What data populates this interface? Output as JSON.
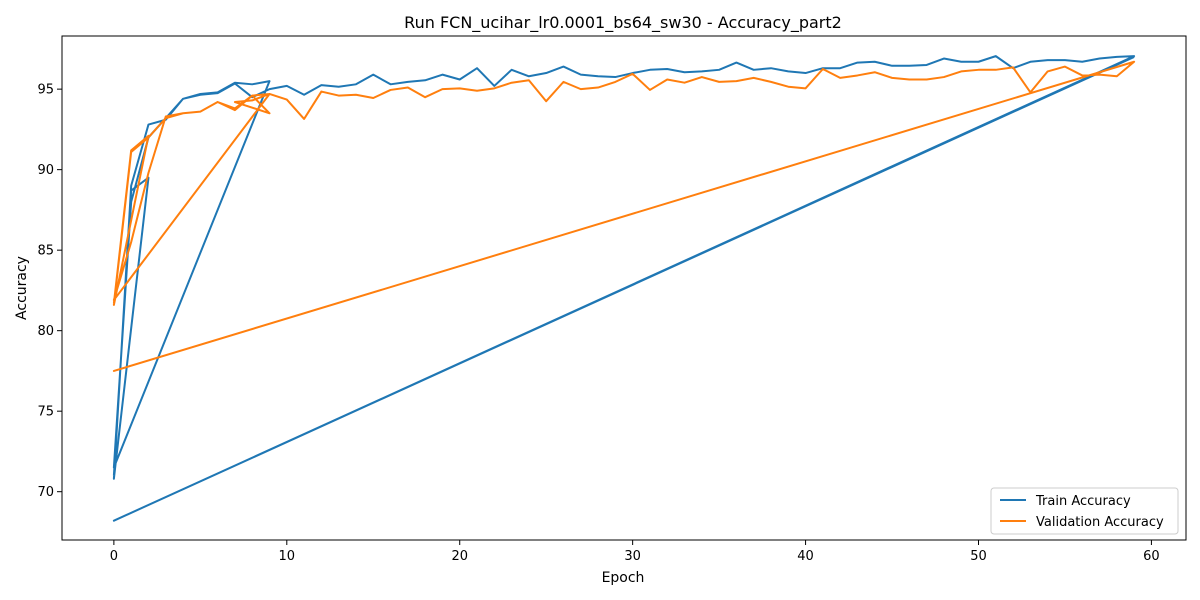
{
  "chart_data": {
    "type": "line",
    "title": "Run FCN_ucihar_lr0.0001_bs64_sw30 - Accuracy_part2",
    "xlabel": "Epoch",
    "ylabel": "Accuracy",
    "xlim": [
      -3,
      62
    ],
    "ylim": [
      67,
      98.3
    ],
    "xticks": [
      0,
      10,
      20,
      30,
      40,
      50,
      60
    ],
    "yticks": [
      70,
      75,
      80,
      85,
      90,
      95
    ],
    "legend_position": "bottom-right",
    "series": [
      {
        "name": "Train Accuracy",
        "color": "#1f77b4",
        "x": [
          0,
          1,
          2,
          0,
          1,
          2,
          3,
          4,
          5,
          6,
          7,
          8,
          9,
          0,
          1,
          2,
          3,
          4,
          5,
          6,
          7,
          8,
          9,
          10,
          11,
          12,
          13,
          14,
          15,
          16,
          17,
          18,
          19,
          20,
          21,
          22,
          23,
          24,
          25,
          26,
          27,
          28,
          29,
          30,
          31,
          32,
          33,
          34,
          35,
          36,
          37,
          38,
          39,
          40,
          41,
          42,
          43,
          44,
          45,
          46,
          47,
          48,
          49,
          50,
          51,
          52,
          53,
          54,
          55,
          56,
          57,
          58,
          59,
          0,
          59
        ],
        "y": [
          71.0,
          88.7,
          89.5,
          70.8,
          89.0,
          92.8,
          93.1,
          94.4,
          94.7,
          94.8,
          95.4,
          95.3,
          95.5,
          71.5,
          88.0,
          92.0,
          93.2,
          94.4,
          94.65,
          94.75,
          95.35,
          94.5,
          95.0,
          95.2,
          94.65,
          95.25,
          95.15,
          95.3,
          95.9,
          95.3,
          95.45,
          95.55,
          95.9,
          95.6,
          96.3,
          95.2,
          96.2,
          95.8,
          96.0,
          96.4,
          95.9,
          95.8,
          95.75,
          96.0,
          96.2,
          96.25,
          96.05,
          96.1,
          96.2,
          96.65,
          96.2,
          96.3,
          96.1,
          96.0,
          96.3,
          96.3,
          96.65,
          96.7,
          96.45,
          96.45,
          96.5,
          96.9,
          96.7,
          96.7,
          97.05,
          96.3,
          96.7,
          96.8,
          96.8,
          96.7,
          96.9,
          97.0,
          97.05,
          68.2,
          97.0
        ]
      },
      {
        "name": "Validation Accuracy",
        "color": "#ff7f0e",
        "x": [
          0,
          1,
          2,
          0,
          1,
          2,
          3,
          4,
          5,
          6,
          7,
          8,
          9,
          7,
          8,
          9,
          0,
          1,
          2,
          3,
          4,
          5,
          6,
          7,
          8,
          9,
          10,
          11,
          12,
          13,
          14,
          15,
          16,
          17,
          18,
          19,
          20,
          21,
          22,
          23,
          24,
          25,
          26,
          27,
          28,
          29,
          30,
          31,
          32,
          33,
          34,
          35,
          36,
          37,
          38,
          39,
          40,
          41,
          42,
          43,
          44,
          45,
          46,
          47,
          48,
          49,
          50,
          51,
          52,
          53,
          54,
          55,
          56,
          57,
          58,
          59,
          0,
          59
        ],
        "y": [
          81.7,
          91.2,
          92.1,
          81.6,
          91.1,
          92.0,
          93.2,
          93.5,
          93.6,
          94.2,
          93.7,
          94.6,
          93.5,
          94.2,
          94.3,
          94.7,
          81.9,
          85.5,
          89.8,
          93.3,
          93.5,
          93.6,
          94.2,
          93.8,
          94.6,
          94.7,
          94.35,
          93.15,
          94.85,
          94.6,
          94.65,
          94.45,
          94.95,
          95.1,
          94.5,
          95.0,
          95.05,
          94.9,
          95.05,
          95.4,
          95.55,
          94.25,
          95.45,
          95.0,
          95.1,
          95.45,
          95.95,
          94.95,
          95.6,
          95.4,
          95.75,
          95.45,
          95.5,
          95.7,
          95.45,
          95.15,
          95.05,
          96.25,
          95.7,
          95.85,
          96.05,
          95.7,
          95.6,
          95.6,
          95.75,
          96.1,
          96.2,
          96.2,
          96.35,
          94.8,
          96.1,
          96.4,
          95.85,
          95.9,
          95.8,
          96.7,
          77.5,
          96.7
        ]
      }
    ]
  }
}
